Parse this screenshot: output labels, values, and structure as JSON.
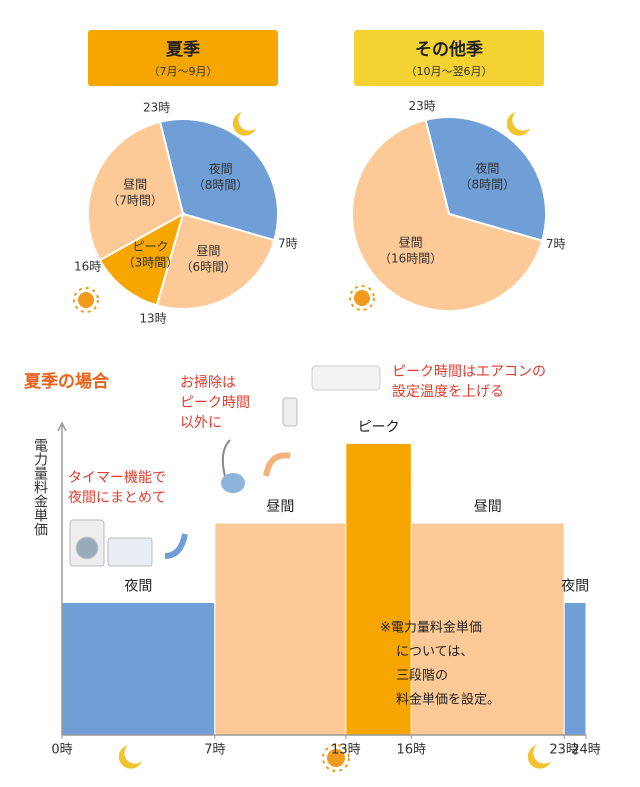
{
  "chart_data": [
    {
      "type": "pie",
      "title": "夏季",
      "subtitle": "（7月〜9月）",
      "header_color": "#f7a600",
      "categories": [
        "夜間",
        "昼間",
        "ピーク",
        "昼間"
      ],
      "values": [
        8,
        6,
        3,
        7
      ],
      "value_labels": [
        "（8時間）",
        "（6時間）",
        "（3時間）",
        "（7時間）"
      ],
      "colors": [
        "#6f9fd6",
        "#fdc996",
        "#f7a600",
        "#fdc996"
      ],
      "boundary_labels": [
        "23時",
        "7時",
        "13時",
        "16時"
      ]
    },
    {
      "type": "pie",
      "title": "その他季",
      "subtitle": "（10月〜翌6月）",
      "header_color": "#f3d232",
      "categories": [
        "夜間",
        "昼間"
      ],
      "values": [
        8,
        16
      ],
      "value_labels": [
        "（8時間）",
        "（16時間）"
      ],
      "colors": [
        "#6f9fd6",
        "#fdc996"
      ],
      "boundary_labels": [
        "23時",
        "7時"
      ]
    },
    {
      "type": "step",
      "title": "夏季の場合",
      "y_label": "電力量料金単価",
      "bins": [
        0,
        7,
        13,
        16,
        23,
        24
      ],
      "categories": [
        "夜間",
        "昼間",
        "ピーク",
        "昼間",
        "夜間"
      ],
      "values": [
        1.0,
        1.6,
        2.2,
        1.6,
        1.0
      ],
      "colors": [
        "#6f9fd6",
        "#fdc996",
        "#f7a600",
        "#fdc996",
        "#6f9fd6"
      ],
      "xlim": [
        0,
        24
      ],
      "ylim": [
        0,
        2.4
      ],
      "xticks": [
        {
          "value": 0,
          "label": "0時"
        },
        {
          "value": 7,
          "label": "7時"
        },
        {
          "value": 13,
          "label": "13時"
        },
        {
          "value": 16,
          "label": "16時"
        },
        {
          "value": 23,
          "label": "23時"
        },
        {
          "value": 24,
          "label": "24時"
        }
      ],
      "annotations": [
        [
          "お掃除は",
          "ピーク時間",
          "以外に"
        ],
        [
          "ピーク時間はエアコンの",
          "設定温度を上げる"
        ],
        [
          "タイマー機能で",
          "夜間にまとめて"
        ],
        [
          "※電力量料金単価",
          "については、",
          "三段階の",
          "料金単価を設定。"
        ]
      ]
    }
  ]
}
